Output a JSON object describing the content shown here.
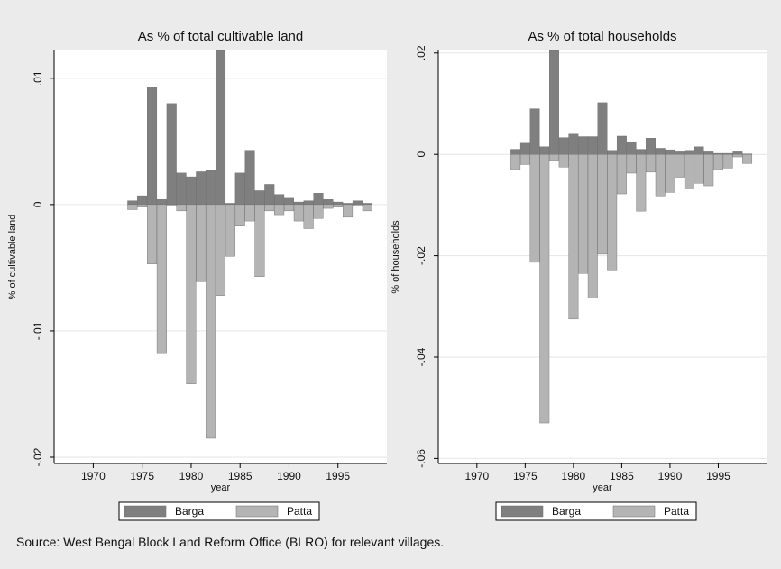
{
  "note": "Source: West Bengal Block Land Reform Office (BLRO) for relevant villages.",
  "colors": {
    "barga": "#7f7f7f",
    "patta": "#b4b4b4",
    "background": "#ebebeb",
    "plot": "#ffffff",
    "grid": "#e6e6e6"
  },
  "chart_data": [
    {
      "type": "bar",
      "title": "As % of total cultivable land",
      "xlabel": "year",
      "ylabel": "% of cultivable land",
      "xlim": [
        1966,
        2000
      ],
      "ylim": [
        -0.0205,
        0.0122
      ],
      "x_ticks": [
        1970,
        1975,
        1980,
        1985,
        1990,
        1995
      ],
      "x_tick_labels": [
        "1970",
        "1975",
        "1980",
        "1985",
        "1990",
        "1995"
      ],
      "y_ticks": [
        -0.02,
        -0.01,
        0,
        0.01
      ],
      "y_tick_labels": [
        "-.02",
        "-.01",
        "0",
        ".01"
      ],
      "grid": true,
      "legend": "bottom",
      "x": [
        1974,
        1975,
        1976,
        1977,
        1978,
        1979,
        1980,
        1981,
        1982,
        1983,
        1984,
        1985,
        1986,
        1987,
        1988,
        1989,
        1990,
        1991,
        1992,
        1993,
        1994,
        1995,
        1996,
        1997,
        1998
      ],
      "series": [
        {
          "name": "Barga",
          "values": [
            0.0003,
            0.0007,
            0.0093,
            0.0004,
            0.008,
            0.0025,
            0.0022,
            0.0026,
            0.0027,
            0.0122,
            0.0001,
            0.0025,
            0.0043,
            0.0011,
            0.0016,
            0.0008,
            0.0005,
            0.0002,
            0.0003,
            0.0009,
            0.0004,
            0.0002,
            0.0001,
            0.0003,
            0.0001
          ]
        },
        {
          "name": "Patta",
          "values": [
            -0.0004,
            -0.0002,
            -0.0047,
            -0.0118,
            -0.0001,
            -0.0005,
            -0.0142,
            -0.0061,
            -0.0185,
            -0.0072,
            -0.0041,
            -0.0017,
            -0.0013,
            -0.0057,
            -0.0005,
            -0.0008,
            -0.0005,
            -0.0013,
            -0.0019,
            -0.0011,
            -0.0003,
            -0.0002,
            -0.001,
            -0.0001,
            -0.0005
          ]
        }
      ]
    },
    {
      "type": "bar",
      "title": "As % of total households",
      "xlabel": "year",
      "ylabel": "% of households",
      "xlim": [
        1966,
        2000
      ],
      "ylim": [
        -0.061,
        0.0205
      ],
      "x_ticks": [
        1970,
        1975,
        1980,
        1985,
        1990,
        1995
      ],
      "x_tick_labels": [
        "1970",
        "1975",
        "1980",
        "1985",
        "1990",
        "1995"
      ],
      "y_ticks": [
        -0.06,
        -0.04,
        -0.02,
        0,
        0.02
      ],
      "y_tick_labels": [
        "-.06",
        "-.04",
        "-.02",
        "0",
        ".02"
      ],
      "grid": true,
      "legend": "bottom",
      "x": [
        1974,
        1975,
        1976,
        1977,
        1978,
        1979,
        1980,
        1981,
        1982,
        1983,
        1984,
        1985,
        1986,
        1987,
        1988,
        1989,
        1990,
        1991,
        1992,
        1993,
        1994,
        1995,
        1996,
        1997,
        1998
      ],
      "series": [
        {
          "name": "Barga",
          "values": [
            0.001,
            0.0022,
            0.009,
            0.0015,
            0.0205,
            0.0033,
            0.004,
            0.0035,
            0.0035,
            0.0102,
            0.0008,
            0.0036,
            0.0025,
            0.001,
            0.0032,
            0.0012,
            0.0009,
            0.0005,
            0.0008,
            0.0015,
            0.0005,
            0.0002,
            0.0002,
            0.0005,
            0.0001
          ]
        },
        {
          "name": "Patta",
          "values": [
            -0.003,
            -0.002,
            -0.0213,
            -0.053,
            -0.0012,
            -0.0025,
            -0.0325,
            -0.0235,
            -0.0283,
            -0.0197,
            -0.0228,
            -0.0078,
            -0.0037,
            -0.0112,
            -0.0035,
            -0.0082,
            -0.0075,
            -0.0045,
            -0.0068,
            -0.0057,
            -0.0062,
            -0.003,
            -0.0027,
            -0.0005,
            -0.0018
          ]
        }
      ]
    }
  ]
}
